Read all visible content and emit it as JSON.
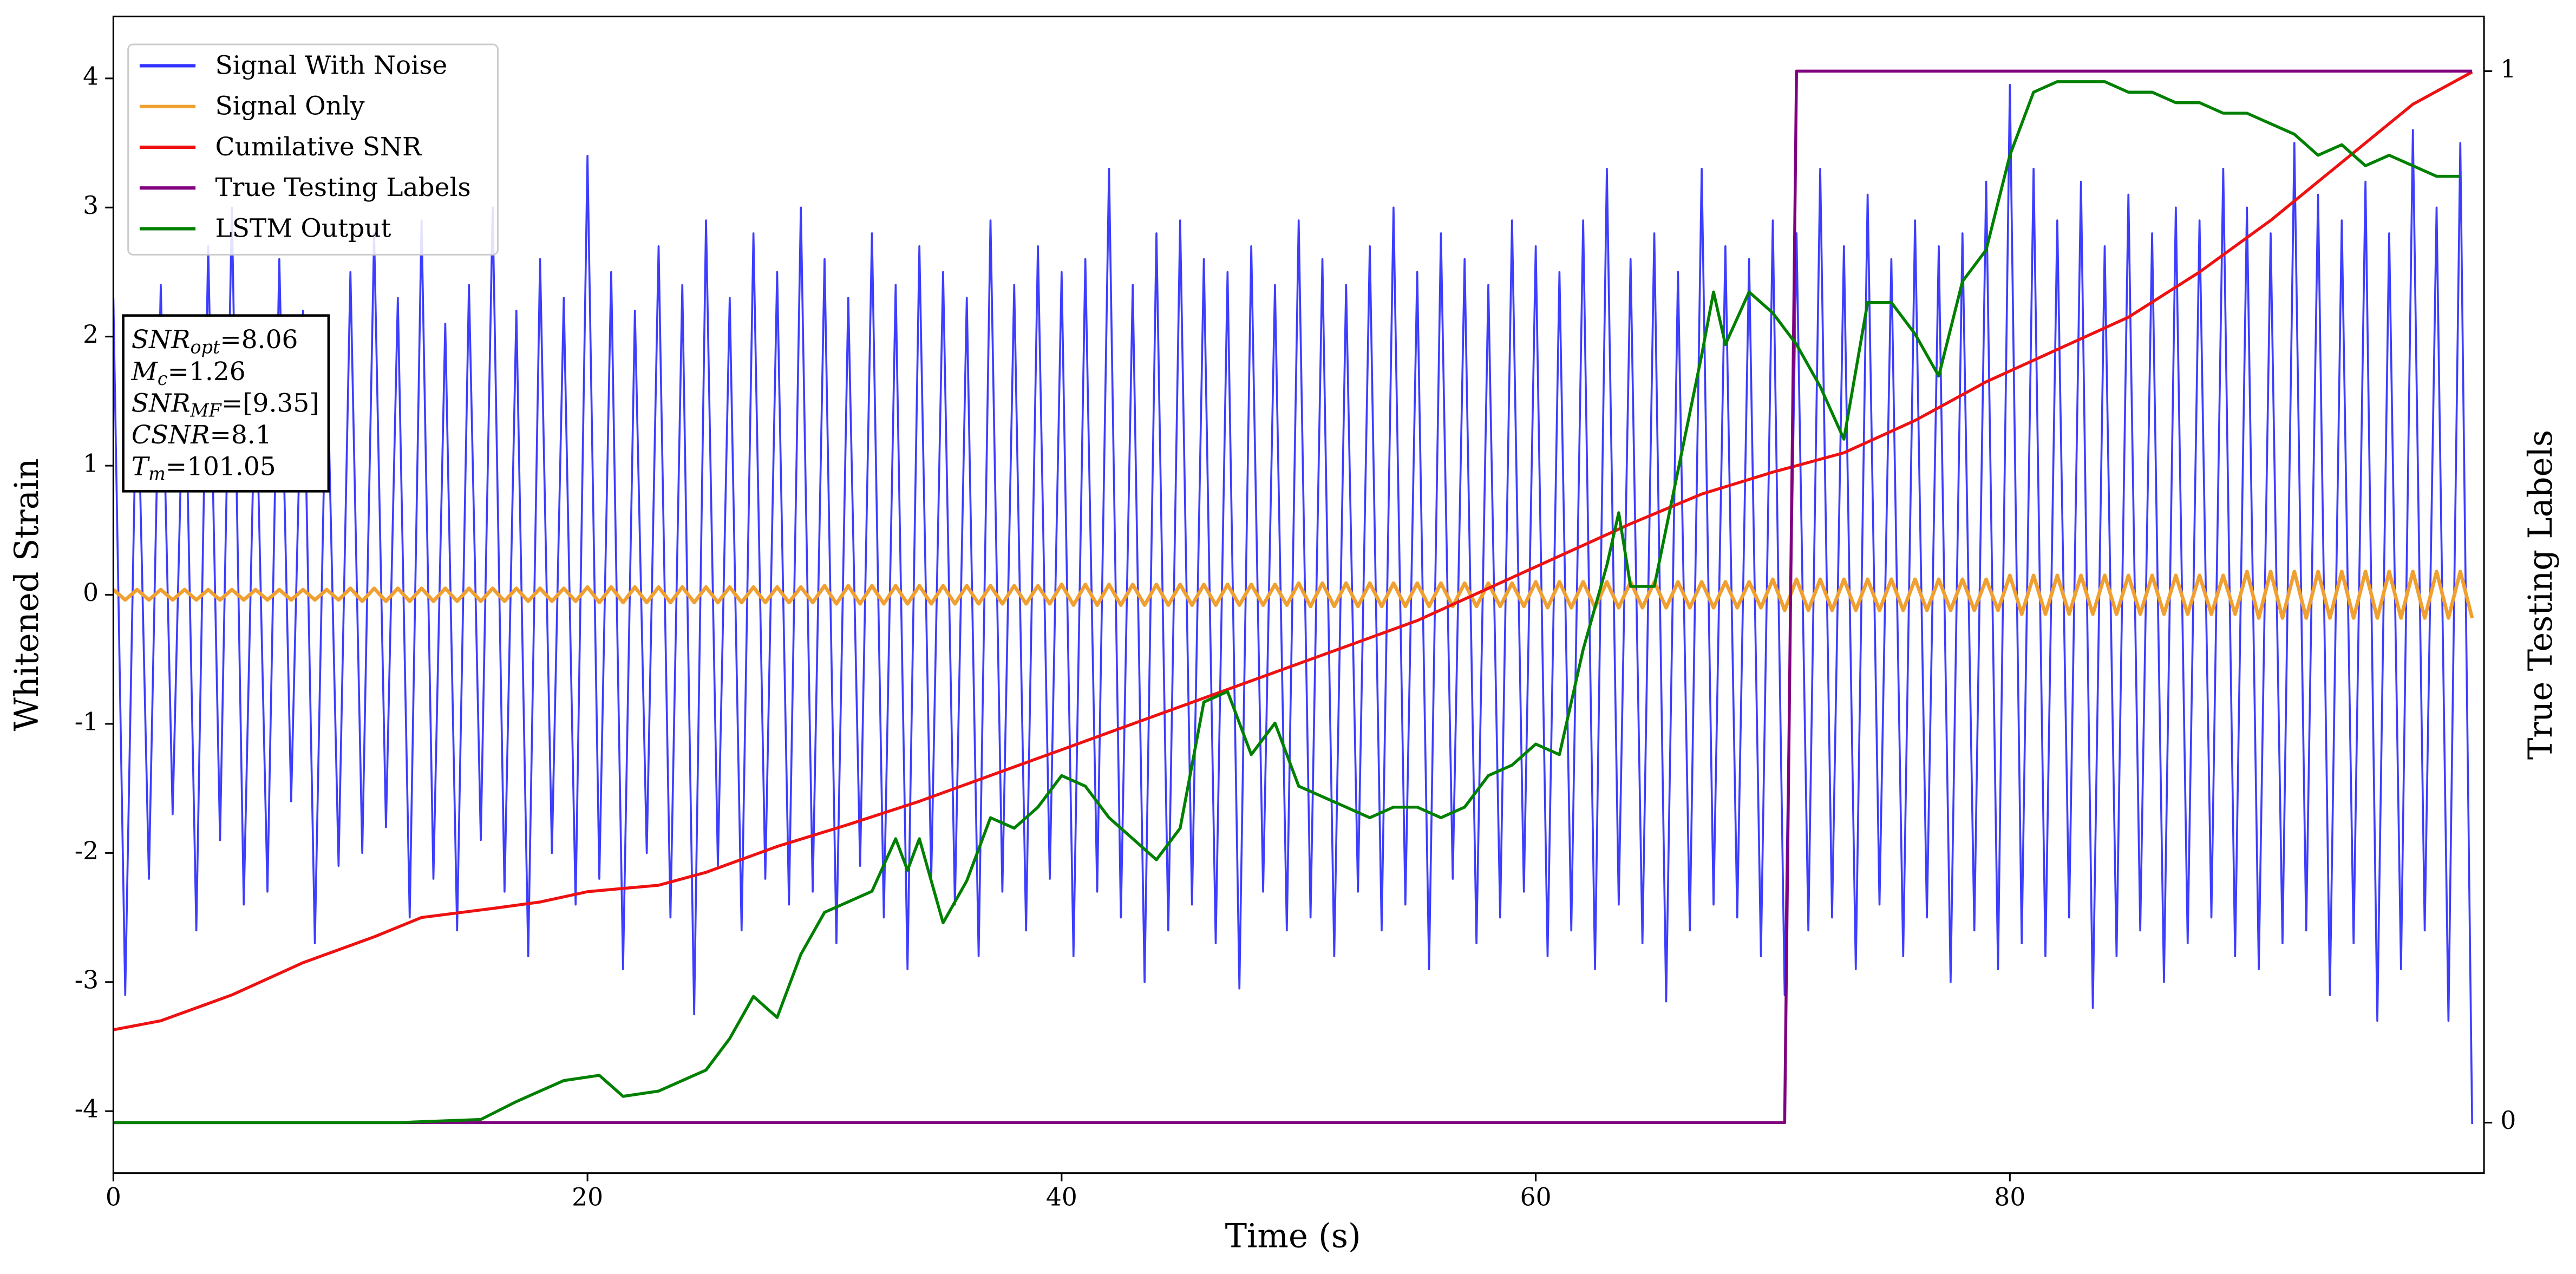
{
  "chart_data": {
    "type": "line",
    "xlabel": "Time (s)",
    "ylabel": "Whitened Strain",
    "y2label": "True Testing Labels",
    "xlim": [
      0,
      100
    ],
    "xticks": [
      0,
      20,
      40,
      60,
      80
    ],
    "ylim": [
      -4.48,
      4.48
    ],
    "yticks": [
      -4,
      -3,
      -2,
      -1,
      0,
      1,
      2,
      3,
      4
    ],
    "y2lim": [
      -0.048,
      1.052
    ],
    "y2ticks": [
      0,
      1
    ],
    "legend": "upper left",
    "x": [
      0,
      0.5,
      1,
      1.5,
      2,
      2.5,
      3,
      3.5,
      4,
      4.5,
      5,
      5.5,
      6,
      6.5,
      7,
      7.5,
      8,
      8.5,
      9,
      9.5,
      10,
      10.5,
      11,
      11.5,
      12,
      12.5,
      13,
      13.5,
      14,
      14.5,
      15,
      15.5,
      16,
      16.5,
      17,
      17.5,
      18,
      18.5,
      19,
      19.5,
      20,
      20.5,
      21,
      21.5,
      22,
      22.5,
      23,
      23.5,
      24,
      24.5,
      25,
      25.5,
      26,
      26.5,
      27,
      27.5,
      28,
      28.5,
      29,
      29.5,
      30,
      30.5,
      31,
      31.5,
      32,
      32.5,
      33,
      33.5,
      34,
      34.5,
      35,
      35.5,
      36,
      36.5,
      37,
      37.5,
      38,
      38.5,
      39,
      39.5,
      40,
      40.5,
      41,
      41.5,
      42,
      42.5,
      43,
      43.5,
      44,
      44.5,
      45,
      45.5,
      46,
      46.5,
      47,
      47.5,
      48,
      48.5,
      49,
      49.5,
      50,
      50.5,
      51,
      51.5,
      52,
      52.5,
      53,
      53.5,
      54,
      54.5,
      55,
      55.5,
      56,
      56.5,
      57,
      57.5,
      58,
      58.5,
      59,
      59.5,
      60,
      60.5,
      61,
      61.5,
      62,
      62.5,
      63,
      63.5,
      64,
      64.5,
      65,
      65.5,
      66,
      66.5,
      67,
      67.5,
      68,
      68.5,
      69,
      69.5,
      70,
      70.5,
      71,
      71.5,
      72,
      72.5,
      73,
      73.5,
      74,
      74.5,
      75,
      75.5,
      76,
      76.5,
      77,
      77.5,
      78,
      78.5,
      79,
      79.5,
      80,
      80.5,
      81,
      81.5,
      82,
      82.5,
      83,
      83.5,
      84,
      84.5,
      85,
      85.5,
      86,
      86.5,
      87,
      87.5,
      88,
      88.5,
      89,
      89.5,
      90,
      90.5,
      91,
      91.5,
      92,
      92.5,
      93,
      93.5,
      94,
      94.5,
      95,
      95.5,
      96,
      96.5,
      97,
      97.5,
      98,
      98.5,
      99,
      99.5
    ],
    "series": [
      {
        "name": "Signal With Noise",
        "color": "#3333ff",
        "values": [
          2.3,
          -3.1,
          1.9,
          -2.2,
          2.4,
          -1.7,
          2.1,
          -2.6,
          2.7,
          -1.9,
          3.0,
          -2.4,
          1.8,
          -2.3,
          2.6,
          -1.6,
          2.2,
          -2.7,
          2.0,
          -2.1,
          2.5,
          -2.0,
          2.8,
          -1.8,
          2.3,
          -2.5,
          2.9,
          -2.2,
          2.1,
          -2.6,
          2.4,
          -1.9,
          3.0,
          -2.3,
          2.2,
          -2.8,
          2.6,
          -2.0,
          2.3,
          -2.4,
          3.4,
          -2.2,
          2.5,
          -2.9,
          2.2,
          -2.0,
          2.7,
          -2.5,
          2.4,
          -3.25,
          2.9,
          -2.1,
          2.3,
          -2.6,
          2.8,
          -2.2,
          2.5,
          -2.4,
          3.0,
          -2.3,
          2.6,
          -2.7,
          2.3,
          -2.1,
          2.8,
          -2.5,
          2.4,
          -2.9,
          2.7,
          -2.2,
          2.5,
          -2.4,
          2.3,
          -2.8,
          2.9,
          -2.3,
          2.4,
          -2.6,
          2.7,
          -2.2,
          2.5,
          -2.8,
          2.6,
          -2.3,
          3.3,
          -2.5,
          2.4,
          -3.0,
          2.8,
          -2.6,
          2.9,
          -2.4,
          2.6,
          -2.7,
          2.5,
          -3.05,
          2.7,
          -2.3,
          2.4,
          -2.6,
          2.9,
          -2.5,
          2.6,
          -2.8,
          2.4,
          -2.3,
          2.7,
          -2.6,
          3.0,
          -2.4,
          2.5,
          -2.9,
          2.8,
          -2.2,
          2.6,
          -2.7,
          2.4,
          -2.5,
          2.9,
          -2.3,
          2.7,
          -2.8,
          2.5,
          -2.6,
          2.9,
          -2.9,
          3.3,
          -2.4,
          2.6,
          -2.7,
          2.8,
          -3.15,
          2.5,
          -2.6,
          3.3,
          -2.4,
          2.7,
          -2.5,
          2.6,
          -2.8,
          2.9,
          -3.1,
          2.8,
          -2.6,
          3.3,
          -2.5,
          2.7,
          -2.9,
          3.1,
          -2.4,
          2.6,
          -2.8,
          2.9,
          -2.5,
          2.7,
          -3.0,
          2.8,
          -2.6,
          3.2,
          -2.9,
          3.95,
          -2.7,
          3.3,
          -2.8,
          2.9,
          -2.5,
          3.2,
          -3.2,
          2.7,
          -2.8,
          3.1,
          -2.6,
          2.8,
          -3.0,
          3.0,
          -2.7,
          2.9,
          -2.5,
          3.3,
          -2.8,
          3.0,
          -2.9,
          2.8,
          -2.7,
          3.5,
          -2.6,
          3.1,
          -3.1,
          2.9,
          -2.7,
          3.2,
          -3.3,
          2.8,
          -2.9,
          3.6,
          -2.6,
          3.0,
          -3.3,
          3.5,
          -4.1
        ]
      },
      {
        "name": "Signal Only",
        "color": "#f0a030",
        "values": [
          0.04,
          -0.04,
          0.04,
          -0.04,
          0.04,
          -0.04,
          0.04,
          -0.04,
          0.04,
          -0.04,
          0.04,
          -0.04,
          0.04,
          -0.04,
          0.04,
          -0.04,
          0.04,
          -0.04,
          0.04,
          -0.04,
          0.05,
          -0.05,
          0.05,
          -0.05,
          0.05,
          -0.05,
          0.05,
          -0.05,
          0.05,
          -0.05,
          0.05,
          -0.05,
          0.05,
          -0.05,
          0.05,
          -0.05,
          0.05,
          -0.05,
          0.05,
          -0.05,
          0.06,
          -0.06,
          0.06,
          -0.06,
          0.06,
          -0.06,
          0.06,
          -0.06,
          0.06,
          -0.06,
          0.06,
          -0.06,
          0.06,
          -0.06,
          0.06,
          -0.06,
          0.06,
          -0.06,
          0.06,
          -0.06,
          0.07,
          -0.07,
          0.07,
          -0.07,
          0.07,
          -0.07,
          0.07,
          -0.07,
          0.07,
          -0.07,
          0.07,
          -0.07,
          0.07,
          -0.07,
          0.07,
          -0.07,
          0.07,
          -0.07,
          0.07,
          -0.07,
          0.08,
          -0.08,
          0.08,
          -0.08,
          0.08,
          -0.08,
          0.08,
          -0.08,
          0.08,
          -0.08,
          0.08,
          -0.08,
          0.08,
          -0.08,
          0.08,
          -0.08,
          0.08,
          -0.08,
          0.08,
          -0.08,
          0.09,
          -0.09,
          0.09,
          -0.09,
          0.09,
          -0.09,
          0.09,
          -0.09,
          0.09,
          -0.09,
          0.09,
          -0.09,
          0.09,
          -0.09,
          0.09,
          -0.09,
          0.09,
          -0.09,
          0.09,
          -0.09,
          0.1,
          -0.1,
          0.1,
          -0.1,
          0.1,
          -0.1,
          0.1,
          -0.1,
          0.1,
          -0.1,
          0.1,
          -0.1,
          0.1,
          -0.1,
          0.1,
          -0.1,
          0.1,
          -0.1,
          0.1,
          -0.1,
          0.12,
          -0.12,
          0.12,
          -0.12,
          0.12,
          -0.12,
          0.12,
          -0.12,
          0.12,
          -0.12,
          0.12,
          -0.12,
          0.12,
          -0.12,
          0.12,
          -0.12,
          0.12,
          -0.12,
          0.12,
          -0.12,
          0.15,
          -0.15,
          0.15,
          -0.15,
          0.15,
          -0.15,
          0.15,
          -0.15,
          0.15,
          -0.15,
          0.15,
          -0.15,
          0.15,
          -0.15,
          0.15,
          -0.15,
          0.15,
          -0.15,
          0.15,
          -0.15,
          0.18,
          -0.18,
          0.18,
          -0.18,
          0.18,
          -0.18,
          0.18,
          -0.18,
          0.18,
          -0.18,
          0.18,
          -0.18,
          0.18,
          -0.18,
          0.18,
          -0.18,
          0.18,
          -0.18,
          0.18,
          -0.18
        ]
      },
      {
        "name": "Cumilative SNR",
        "color": "#ee1111",
        "x": [
          0,
          2,
          5,
          8,
          11,
          13,
          16,
          18,
          20,
          23,
          25,
          28,
          31,
          34,
          37,
          40,
          43,
          46,
          49,
          52,
          55,
          58,
          61,
          64,
          67,
          70,
          73,
          76,
          79,
          82,
          85,
          88,
          91,
          94,
          97,
          99.5
        ],
        "values": [
          -3.37,
          -3.3,
          -3.1,
          -2.85,
          -2.65,
          -2.5,
          -2.43,
          -2.38,
          -2.3,
          -2.25,
          -2.15,
          -1.95,
          -1.78,
          -1.6,
          -1.4,
          -1.2,
          -1.0,
          -0.8,
          -0.6,
          -0.4,
          -0.2,
          0.05,
          0.3,
          0.55,
          0.78,
          0.95,
          1.1,
          1.35,
          1.65,
          1.9,
          2.15,
          2.5,
          2.9,
          3.35,
          3.8,
          4.05
        ]
      },
      {
        "name": "True Testing Labels",
        "color": "#800080",
        "axis": "y2",
        "x": [
          0,
          70.5,
          71,
          99.5
        ],
        "values": [
          0,
          0,
          1,
          1
        ]
      },
      {
        "name": "LSTM Output",
        "color": "#008000",
        "axis": "y2",
        "x": [
          0,
          12,
          15.5,
          17,
          18,
          19,
          20.5,
          21.5,
          23,
          24,
          25,
          26,
          27,
          28,
          29,
          30,
          31,
          32,
          33,
          33.5,
          34,
          35,
          36,
          37,
          38,
          39,
          40,
          41,
          42,
          43,
          44,
          45,
          46,
          47,
          48,
          49,
          50,
          51,
          52,
          53,
          54,
          55,
          56,
          57,
          58,
          59,
          60,
          61,
          62,
          63,
          63.5,
          64,
          65,
          66,
          67,
          67.5,
          68,
          69,
          70,
          71,
          72,
          73,
          74,
          75,
          76,
          77,
          78,
          79,
          80,
          81,
          82,
          83,
          84,
          85,
          86,
          87,
          88,
          89,
          90,
          91,
          92,
          93,
          94,
          95,
          96,
          97,
          98,
          99
        ],
        "values": [
          0,
          0,
          0.003,
          0.02,
          0.03,
          0.04,
          0.045,
          0.025,
          0.03,
          0.04,
          0.05,
          0.08,
          0.12,
          0.1,
          0.16,
          0.2,
          0.21,
          0.22,
          0.27,
          0.24,
          0.27,
          0.19,
          0.23,
          0.29,
          0.28,
          0.3,
          0.33,
          0.32,
          0.29,
          0.27,
          0.25,
          0.28,
          0.4,
          0.41,
          0.35,
          0.38,
          0.32,
          0.31,
          0.3,
          0.29,
          0.3,
          0.3,
          0.29,
          0.3,
          0.33,
          0.34,
          0.36,
          0.35,
          0.45,
          0.53,
          0.58,
          0.51,
          0.51,
          0.62,
          0.73,
          0.79,
          0.74,
          0.79,
          0.77,
          0.74,
          0.7,
          0.65,
          0.78,
          0.78,
          0.75,
          0.71,
          0.8,
          0.83,
          0.92,
          0.98,
          0.99,
          0.99,
          0.99,
          0.98,
          0.98,
          0.97,
          0.97,
          0.96,
          0.96,
          0.95,
          0.94,
          0.92,
          0.93,
          0.91,
          0.92,
          0.91,
          0.9,
          0.9
        ]
      }
    ],
    "annotations": [
      {
        "symbol": "SNR",
        "sub": "opt",
        "text": "=8.06"
      },
      {
        "symbol": "M",
        "sub": "c",
        "text": "=1.26"
      },
      {
        "symbol": "SNR",
        "sub": "MF",
        "text": "=[9.35]"
      },
      {
        "symbol": "CSNR",
        "text": "=8.1"
      },
      {
        "symbol": "T",
        "sub": "m",
        "text": "=101.05"
      }
    ]
  }
}
